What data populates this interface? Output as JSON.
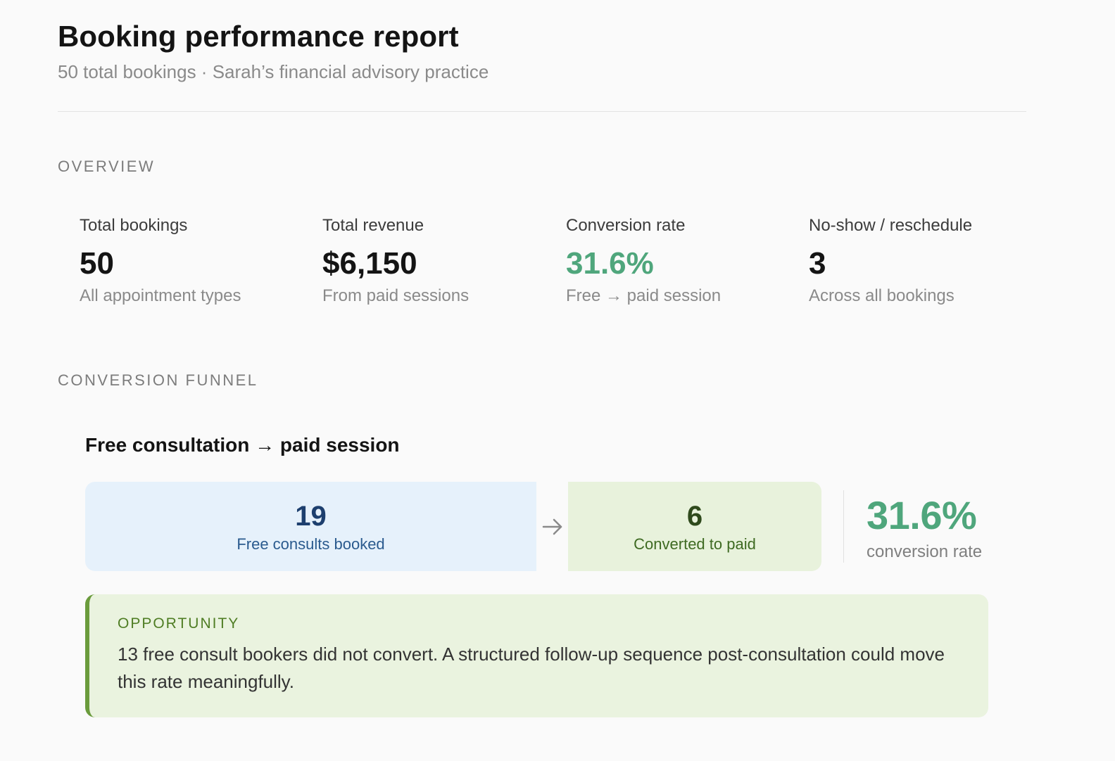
{
  "header": {
    "title": "Booking performance report",
    "subtitle": "50 total bookings · Sarah’s financial advisory practice"
  },
  "overview": {
    "section_label": "OVERVIEW",
    "metrics": [
      {
        "label": "Total bookings",
        "value": "50",
        "note": "All appointment types"
      },
      {
        "label": "Total revenue",
        "value": "$6,150",
        "note": "From paid sessions"
      },
      {
        "label": "Conversion rate",
        "value": "31.6%",
        "note": "Free → paid session"
      },
      {
        "label": "No-show / reschedule",
        "value": "3",
        "note": "Across all bookings"
      }
    ]
  },
  "funnel": {
    "section_label": "CONVERSION FUNNEL",
    "title": "Free consultation → paid session",
    "stages": [
      {
        "count": "19",
        "label": "Free consults booked"
      },
      {
        "count": "6",
        "label": "Converted to paid"
      }
    ],
    "rate_value": "31.6%",
    "rate_label": "conversion rate"
  },
  "opportunity": {
    "label": "OPPORTUNITY",
    "text": "13 free consult bookers did not convert. A structured follow-up sequence post-consultation could move this rate meaningfully."
  },
  "colors": {
    "accent_green": "#4fa67c",
    "free_stage_bg": "#e6f1fb",
    "paid_stage_bg": "#e8f2dc",
    "opportunity_border": "#6a9b3c"
  },
  "icons": {
    "funnel_arrow": "arrow-right-icon"
  }
}
